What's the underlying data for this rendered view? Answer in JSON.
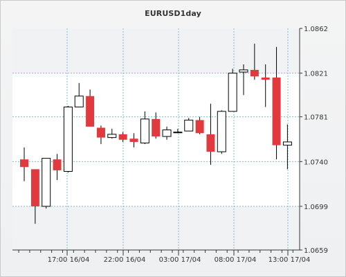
{
  "chart_data": {
    "type": "candlestick",
    "title": "EURUSD1day",
    "x_tick_labels": [
      "17:00 16/04",
      "22:00 16/04",
      "03:00 17/04",
      "08:00 17/04",
      "13:00 17/04"
    ],
    "y_tick_labels": [
      "1.0862",
      "1.0821",
      "1.0781",
      "1.0740",
      "1.0699",
      "1.0659"
    ],
    "ylim": [
      1.0659,
      1.0862
    ],
    "grid": true,
    "colors": {
      "bearish": "#e03a3e",
      "bullish": "#ffffff",
      "outline": "#000000",
      "grid": "#7fb9d4",
      "plot_background": "#ffffff",
      "outer_background": "#f1f2f4"
    },
    "candles": [
      {
        "open": 1.0742,
        "high": 1.0753,
        "low": 1.0722,
        "close": 1.0735
      },
      {
        "open": 1.0733,
        "high": 1.0733,
        "low": 1.0683,
        "close": 1.0699
      },
      {
        "open": 1.0699,
        "high": 1.0743,
        "low": 1.0697,
        "close": 1.0743
      },
      {
        "open": 1.0742,
        "high": 1.0747,
        "low": 1.0723,
        "close": 1.0732
      },
      {
        "open": 1.0731,
        "high": 1.0791,
        "low": 1.073,
        "close": 1.079
      },
      {
        "open": 1.079,
        "high": 1.0812,
        "low": 1.079,
        "close": 1.08
      },
      {
        "open": 1.08,
        "high": 1.0806,
        "low": 1.0772,
        "close": 1.0772
      },
      {
        "open": 1.0771,
        "high": 1.0773,
        "low": 1.0756,
        "close": 1.0762
      },
      {
        "open": 1.0762,
        "high": 1.077,
        "low": 1.0761,
        "close": 1.0765
      },
      {
        "open": 1.0765,
        "high": 1.0767,
        "low": 1.0758,
        "close": 1.076
      },
      {
        "open": 1.0761,
        "high": 1.0766,
        "low": 1.0753,
        "close": 1.0758
      },
      {
        "open": 1.0757,
        "high": 1.0786,
        "low": 1.0756,
        "close": 1.0779
      },
      {
        "open": 1.0779,
        "high": 1.0785,
        "low": 1.0761,
        "close": 1.0763
      },
      {
        "open": 1.0763,
        "high": 1.0772,
        "low": 1.076,
        "close": 1.0769
      },
      {
        "open": 1.0767,
        "high": 1.077,
        "low": 1.0766,
        "close": 1.0767
      },
      {
        "open": 1.0768,
        "high": 1.078,
        "low": 1.0768,
        "close": 1.0778
      },
      {
        "open": 1.0778,
        "high": 1.0781,
        "low": 1.0765,
        "close": 1.0766
      },
      {
        "open": 1.0765,
        "high": 1.0793,
        "low": 1.0737,
        "close": 1.0749
      },
      {
        "open": 1.0749,
        "high": 1.0787,
        "low": 1.0747,
        "close": 1.0786
      },
      {
        "open": 1.0786,
        "high": 1.0825,
        "low": 1.0786,
        "close": 1.0821
      },
      {
        "open": 1.0822,
        "high": 1.0829,
        "low": 1.0801,
        "close": 1.0824
      },
      {
        "open": 1.0824,
        "high": 1.0848,
        "low": 1.0815,
        "close": 1.0818
      },
      {
        "open": 1.0817,
        "high": 1.0829,
        "low": 1.079,
        "close": 1.0815
      },
      {
        "open": 1.0817,
        "high": 1.0845,
        "low": 1.0742,
        "close": 1.0755
      },
      {
        "open": 1.0755,
        "high": 1.0774,
        "low": 1.0733,
        "close": 1.0758
      }
    ]
  }
}
